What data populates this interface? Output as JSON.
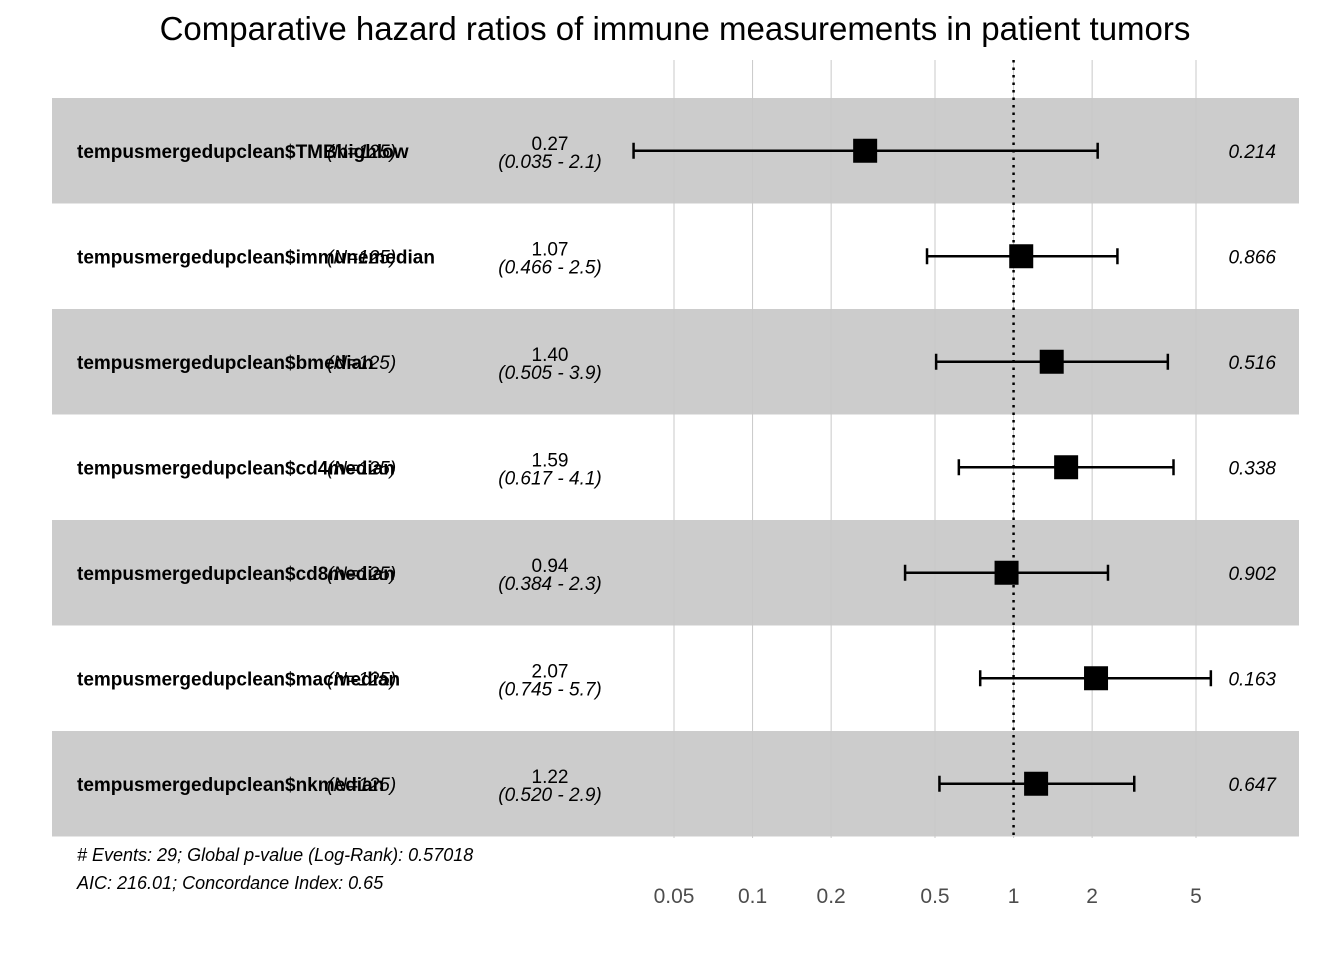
{
  "chart_data": {
    "type": "forest",
    "title": "Comparative hazard ratios of immune measurements in patient tumors",
    "x_scale": "log",
    "xlim": [
      0.03,
      8.5
    ],
    "x_ticks": [
      {
        "value": 0.05,
        "label": "0.05"
      },
      {
        "value": 0.1,
        "label": "0.1"
      },
      {
        "value": 0.2,
        "label": "0.2"
      },
      {
        "value": 0.5,
        "label": "0.5"
      },
      {
        "value": 1,
        "label": "1"
      },
      {
        "value": 2,
        "label": "2"
      },
      {
        "value": 5,
        "label": "5"
      }
    ],
    "reference_line": 1,
    "grid": true,
    "rows": [
      {
        "variable": "tempusmergedupclean$TMBhighlow",
        "n": "(N=125)",
        "hr": 0.27,
        "hr_label": "0.27",
        "ci_low": 0.035,
        "ci_high": 2.1,
        "ci_label": "(0.035 - 2.1)",
        "p": "0.214",
        "shaded": true
      },
      {
        "variable": "tempusmergedupclean$immunemedian",
        "n": "(N=125)",
        "hr": 1.07,
        "hr_label": "1.07",
        "ci_low": 0.466,
        "ci_high": 2.5,
        "ci_label": "(0.466 - 2.5)",
        "p": "0.866",
        "shaded": false
      },
      {
        "variable": "tempusmergedupclean$bmedian",
        "n": "(N=125)",
        "hr": 1.4,
        "hr_label": "1.40",
        "ci_low": 0.505,
        "ci_high": 3.9,
        "ci_label": "(0.505 - 3.9)",
        "p": "0.516",
        "shaded": true
      },
      {
        "variable": "tempusmergedupclean$cd4median",
        "n": "(N=125)",
        "hr": 1.59,
        "hr_label": "1.59",
        "ci_low": 0.617,
        "ci_high": 4.1,
        "ci_label": "(0.617 - 4.1)",
        "p": "0.338",
        "shaded": false
      },
      {
        "variable": "tempusmergedupclean$cd8median",
        "n": "(N=125)",
        "hr": 0.94,
        "hr_label": "0.94",
        "ci_low": 0.384,
        "ci_high": 2.3,
        "ci_label": "(0.384 - 2.3)",
        "p": "0.902",
        "shaded": true
      },
      {
        "variable": "tempusmergedupclean$macmedian",
        "n": "(N=125)",
        "hr": 2.07,
        "hr_label": "2.07",
        "ci_low": 0.745,
        "ci_high": 5.7,
        "ci_label": "(0.745 - 5.7)",
        "p": "0.163",
        "shaded": false
      },
      {
        "variable": "tempusmergedupclean$nkmedian",
        "n": "(N=125)",
        "hr": 1.22,
        "hr_label": "1.22",
        "ci_low": 0.52,
        "ci_high": 2.9,
        "ci_label": "(0.520 - 2.9)",
        "p": "0.647",
        "shaded": true
      }
    ],
    "footer": [
      "# Events: 29; Global p-value (Log-Rank): 0.57018",
      "AIC: 216.01; Concordance Index: 0.65"
    ],
    "colors": {
      "shaded_row": "#cccccc",
      "grid": "#c8c8c8",
      "marker": "#000000",
      "tick_text": "#4d4d4d"
    }
  }
}
